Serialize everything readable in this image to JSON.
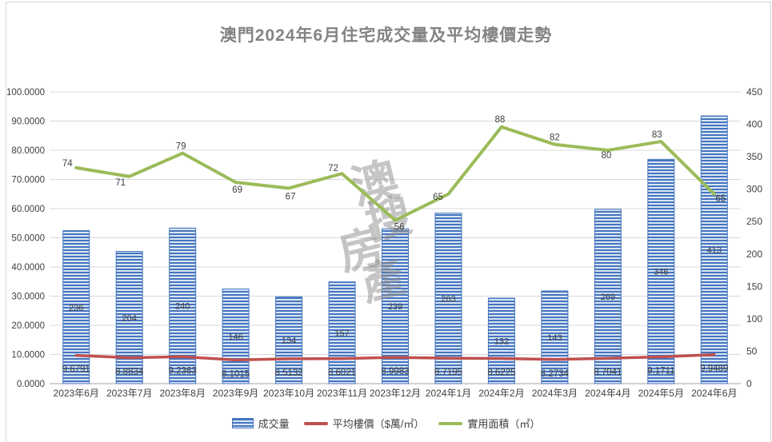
{
  "title": "澳門2024年6月住宅成交量及平均樓價走勢",
  "watermark": {
    "text": "澳搜房產",
    "chars": [
      "澳",
      "搜",
      "房",
      "產"
    ]
  },
  "legend": [
    {
      "label": "成交量",
      "swatch": "striped-bar",
      "color": "#4575BE"
    },
    {
      "label": "平均樓價（$萬/㎡）",
      "swatch": "line",
      "color": "#C0504D"
    },
    {
      "label": "實用面積（㎡）",
      "swatch": "line",
      "color": "#9BBB59"
    }
  ],
  "chart_data": {
    "type": "bar",
    "title": "澳門2024年6月住宅成交量及平均樓價走勢",
    "categories": [
      "2023年6月",
      "2023年7月",
      "2023年8月",
      "2023年9月",
      "2023年10月",
      "2023年11月",
      "2023年12月",
      "2024年1月",
      "2024年2月",
      "2024年3月",
      "2024年4月",
      "2024年5月",
      "2024年6月"
    ],
    "series": [
      {
        "name": "成交量",
        "type": "bar",
        "axis": "right",
        "color": "#4575BE",
        "values": [
          236,
          204,
          240,
          146,
          134,
          157,
          239,
          263,
          132,
          143,
          269,
          346,
          413
        ]
      },
      {
        "name": "平均樓價（$萬/㎡）",
        "type": "line",
        "axis": "left",
        "color": "#C0504D",
        "values": [
          9.6791,
          8.8834,
          9.2363,
          8.1015,
          8.5132,
          8.6021,
          8.9983,
          8.7195,
          8.6225,
          8.2734,
          8.7041,
          9.1711,
          9.9489
        ],
        "label_decimals": 4
      },
      {
        "name": "實用面積（㎡）",
        "type": "line",
        "axis": "left",
        "color": "#9BBB59",
        "values": [
          74,
          71,
          79,
          69,
          67,
          72,
          56,
          65,
          88,
          82,
          80,
          83,
          65
        ],
        "label_decimals": 0
      }
    ],
    "left_axis": {
      "min": 0,
      "max": 100,
      "step": 10,
      "tick_labels": [
        "0.0000",
        "10.0000",
        "20.0000",
        "30.0000",
        "40.0000",
        "50.0000",
        "60.0000",
        "70.0000",
        "80.0000",
        "90.0000",
        "100.0000"
      ]
    },
    "right_axis": {
      "min": 0,
      "max": 450,
      "step": 50,
      "tick_labels": [
        "0",
        "50",
        "100",
        "150",
        "200",
        "250",
        "300",
        "350",
        "400",
        "450"
      ]
    },
    "grid": true,
    "legend_position": "bottom",
    "colors": {
      "gridline": "#d9d9d9",
      "axis_line": "#a6a6a6",
      "label_text": "#404040",
      "bar_stripe_dark": "#4575be",
      "bar_stripe_light": "#dae5f5",
      "title_text": "#848484",
      "watermark": "#8c8c8c"
    }
  }
}
